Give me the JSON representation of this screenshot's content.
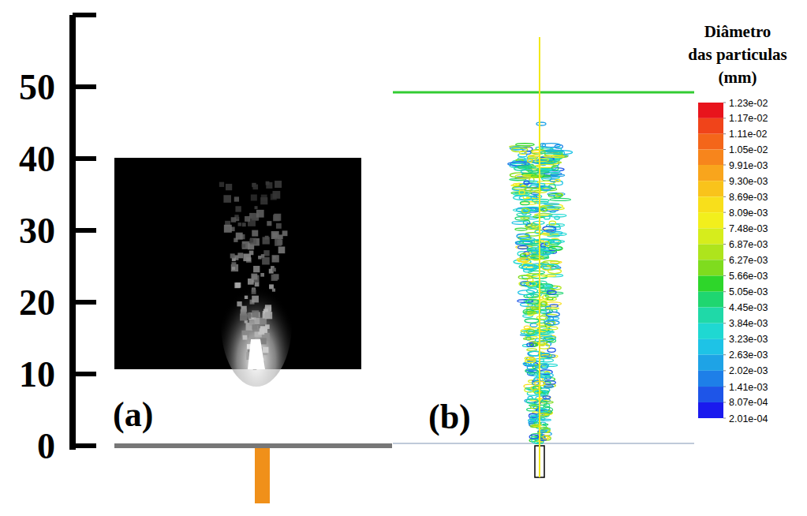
{
  "chart_data": {
    "type": "figure",
    "ylim": [
      0,
      60
    ],
    "yticks": [
      0,
      10,
      20,
      30,
      40,
      50
    ],
    "annotations": [
      "(a)",
      "(b)"
    ],
    "colorbar": {
      "title": [
        "Diâmetro",
        "das particulas",
        "(mm)"
      ],
      "range": [
        0.000201,
        0.0123
      ],
      "ticks": [
        {
          "value": 0.0123,
          "label": "1.23e-02"
        },
        {
          "value": 0.0117,
          "label": "1.17e-02"
        },
        {
          "value": 0.0111,
          "label": "1.11e-02"
        },
        {
          "value": 0.0105,
          "label": "1.05e-02"
        },
        {
          "value": 0.00991,
          "label": "9.91e-03"
        },
        {
          "value": 0.0093,
          "label": "9.30e-03"
        },
        {
          "value": 0.00869,
          "label": "8.69e-03"
        },
        {
          "value": 0.00809,
          "label": "8.09e-03"
        },
        {
          "value": 0.00748,
          "label": "7.48e-03"
        },
        {
          "value": 0.00687,
          "label": "6.87e-03"
        },
        {
          "value": 0.00627,
          "label": "6.27e-03"
        },
        {
          "value": 0.00566,
          "label": "5.66e-03"
        },
        {
          "value": 0.00505,
          "label": "5.05e-03"
        },
        {
          "value": 0.00445,
          "label": "4.45e-03"
        },
        {
          "value": 0.00384,
          "label": "3.84e-03"
        },
        {
          "value": 0.00323,
          "label": "3.23e-03"
        },
        {
          "value": 0.00263,
          "label": "2.63e-03"
        },
        {
          "value": 0.00202,
          "label": "2.02e-03"
        },
        {
          "value": 0.00141,
          "label": "1.41e-03"
        },
        {
          "value": 0.000807,
          "label": "8.07e-04"
        },
        {
          "value": 0.000201,
          "label": "2.01e-04"
        }
      ],
      "colors": [
        "#e8141c",
        "#f0441a",
        "#f4661a",
        "#f7851c",
        "#f9a51c",
        "#f9c31b",
        "#f8df1b",
        "#f2ef1c",
        "#d6ed1c",
        "#aee41c",
        "#7fdc1e",
        "#2ed62a",
        "#1fd670",
        "#1fd9a8",
        "#1fd8d2",
        "#1ec3e6",
        "#1ea3e6",
        "#1e7fe8",
        "#1e55e8",
        "#1a1aee"
      ]
    }
  }
}
